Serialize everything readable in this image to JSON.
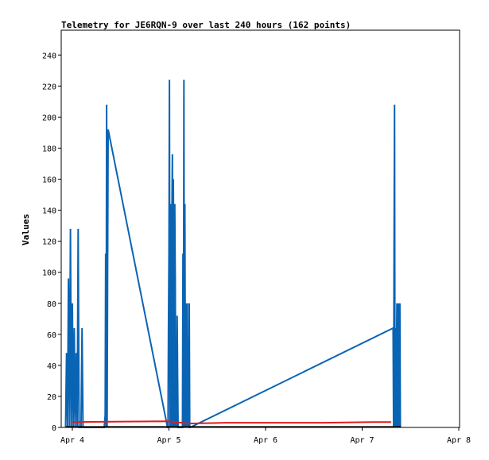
{
  "chart_data": {
    "type": "line",
    "title": "Telemetry for JE6RQN-9 over last 240 hours (162 points)",
    "xlabel": "",
    "ylabel": "Values",
    "x_ticks": [
      "Apr 4",
      "Apr 5",
      "Apr 6",
      "Apr 7",
      "Apr 8"
    ],
    "xlim": [
      0,
      4
    ],
    "y_ticks": [
      "0",
      "20",
      "40",
      "60",
      "80",
      "100",
      "120",
      "140",
      "160",
      "180",
      "200",
      "220",
      "240"
    ],
    "ylim": [
      0,
      256
    ],
    "grid": false,
    "colors": {
      "blue": "#0a64b4",
      "red": "#e41a1c",
      "black": "#000000"
    },
    "series": [
      {
        "color": "#0a64b4",
        "points": [
          [
            -0.07,
            0
          ],
          [
            -0.06,
            48
          ],
          [
            -0.05,
            0
          ],
          [
            -0.04,
            96
          ],
          [
            -0.03,
            0
          ],
          [
            -0.02,
            128
          ],
          [
            -0.01,
            0
          ],
          [
            0.0,
            80
          ],
          [
            0.01,
            0
          ],
          [
            0.02,
            64
          ],
          [
            0.03,
            0
          ],
          [
            0.04,
            48
          ],
          [
            0.05,
            0
          ],
          [
            0.06,
            128
          ],
          [
            0.07,
            0
          ],
          [
            0.08,
            0
          ],
          [
            0.09,
            0
          ],
          [
            0.1,
            64
          ],
          [
            0.11,
            0
          ],
          [
            0.33,
            0
          ],
          [
            0.34,
            8
          ],
          [
            0.345,
            112
          ],
          [
            0.35,
            0
          ],
          [
            0.355,
            208
          ],
          [
            0.36,
            0
          ],
          [
            0.365,
            96
          ],
          [
            0.37,
            192
          ],
          [
            0.985,
            0
          ],
          [
            0.99,
            0
          ],
          [
            0.995,
            64
          ],
          [
            1.0,
            112
          ],
          [
            1.005,
            224
          ],
          [
            1.01,
            0
          ],
          [
            1.015,
            144
          ],
          [
            1.02,
            72
          ],
          [
            1.025,
            0
          ],
          [
            1.03,
            128
          ],
          [
            1.035,
            176
          ],
          [
            1.04,
            0
          ],
          [
            1.045,
            160
          ],
          [
            1.05,
            88
          ],
          [
            1.055,
            0
          ],
          [
            1.06,
            144
          ],
          [
            1.065,
            96
          ],
          [
            1.07,
            0
          ],
          [
            1.075,
            48
          ],
          [
            1.08,
            0
          ],
          [
            1.085,
            72
          ],
          [
            1.09,
            32
          ],
          [
            1.095,
            0
          ],
          [
            1.14,
            0
          ],
          [
            1.145,
            112
          ],
          [
            1.15,
            0
          ],
          [
            1.155,
            224
          ],
          [
            1.16,
            0
          ],
          [
            1.165,
            144
          ],
          [
            1.17,
            0
          ],
          [
            1.175,
            80
          ],
          [
            1.18,
            40
          ],
          [
            1.185,
            0
          ],
          [
            1.19,
            80
          ],
          [
            1.195,
            0
          ],
          [
            1.2,
            16
          ],
          [
            1.205,
            0
          ],
          [
            1.21,
            80
          ],
          [
            1.215,
            0
          ],
          [
            1.22,
            0
          ],
          [
            3.32,
            64
          ],
          [
            3.325,
            0
          ],
          [
            3.33,
            112
          ],
          [
            3.335,
            208
          ],
          [
            3.34,
            0
          ],
          [
            3.345,
            64
          ],
          [
            3.35,
            0
          ],
          [
            3.355,
            40
          ],
          [
            3.36,
            80
          ],
          [
            3.365,
            0
          ],
          [
            3.37,
            80
          ],
          [
            3.375,
            0
          ],
          [
            3.38,
            80
          ],
          [
            3.385,
            0
          ],
          [
            3.39,
            80
          ],
          [
            3.395,
            0
          ]
        ]
      },
      {
        "color": "#e41a1c",
        "points": [
          [
            0.0,
            3.5
          ],
          [
            1.0,
            4
          ],
          [
            1.2,
            2.5
          ],
          [
            1.6,
            3
          ],
          [
            2.6,
            3
          ],
          [
            3.1,
            3.5
          ],
          [
            3.3,
            3.5
          ]
        ]
      },
      {
        "color": "#000000",
        "points": [
          [
            -0.07,
            0.3
          ],
          [
            3.4,
            0.3
          ]
        ]
      }
    ]
  }
}
